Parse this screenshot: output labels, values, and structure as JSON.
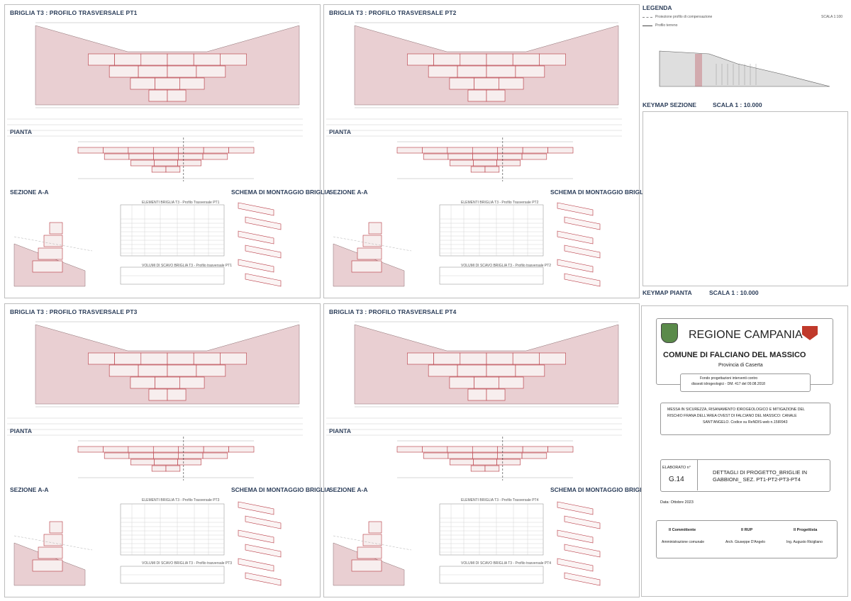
{
  "panels": [
    {
      "id": "pt1",
      "title": "BRIGLIA T3 : PROFILO TRASVERSALE PT1",
      "pianta": "PIANTA",
      "sezione": "SEZIONE A-A",
      "schema": "SCHEMA DI MONTAGGIO BRIGLIA",
      "table_title": "ELEMENTI BRIGLIA T3 - Profilo Trasversale PT1",
      "volume_title": "VOLUMI DI SCAVO BRIGLIA T3 - Profilo trasversale PT1"
    },
    {
      "id": "pt2",
      "title": "BRIGLIA T3 : PROFILO TRASVERSALE PT2",
      "pianta": "PIANTA",
      "sezione": "SEZIONE A-A",
      "schema": "SCHEMA DI MONTAGGIO BRIGLIA",
      "table_title": "ELEMENTI BRIGLIA T3 - Profilo Trasversale PT2",
      "volume_title": "VOLUMI DI SCAVO BRIGLIA T3 - Profilo trasversale PT2"
    },
    {
      "id": "pt3",
      "title": "BRIGLIA T3 : PROFILO TRASVERSALE PT3",
      "pianta": "PIANTA",
      "sezione": "SEZIONE A-A",
      "schema": "SCHEMA DI MONTAGGIO BRIGLIA",
      "table_title": "ELEMENTI BRIGLIA T3 - Profilo Trasversale PT3",
      "volume_title": "VOLUMI DI SCAVO BRIGLIA T3 - Profilo trasversale PT3"
    },
    {
      "id": "pt4",
      "title": "BRIGLIA T3 : PROFILO TRASVERSALE PT4",
      "pianta": "PIANTA",
      "sezione": "SEZIONE A-A",
      "schema": "SCHEMA DI MONTAGGIO BRIGLIA",
      "table_title": "ELEMENTI BRIGLIA T3 - Profilo Trasversale PT4",
      "volume_title": "VOLUMI DI SCAVO BRIGLIA T3 - Profilo trasversale PT4"
    }
  ],
  "legend": {
    "title": "LEGENDA",
    "item1": "Proiezione profilo di compensazione",
    "item2": "Profilo terreno",
    "scale": "SCALA 1:100"
  },
  "keymap_sezione": {
    "title": "KEYMAP SEZIONE",
    "scale": "SCALA 1 : 10.000"
  },
  "keymap_pianta": {
    "title": "KEYMAP PIANTA",
    "scale": "SCALA 1 : 10.000"
  },
  "cartiglio": {
    "region": "REGIONE CAMPANIA",
    "comune": "COMUNE DI FALCIANO DEL MASSICO",
    "provincia": "Provincia di Caserta",
    "fondo_line1": "Fondo progettazioni interventi contro",
    "fondo_line2": "dissesti idrogeologici - DM. 417 del 09.08.2018",
    "intervento_line1": "MESSA IN SICUREZZA, RISANAMENTO IDROGEOLOGICO E MITIGAZIONE DEL",
    "intervento_line2": "RISCHIO FRANA DELL'AREA OVEST DI FALCIANO DEL MASSICO: CANALE",
    "intervento_line3": "SANT'ANGELO. Codice su ReNDIS-web n.15IR943",
    "elaborato_label": "ELABORATO n°",
    "elaborato_code": "G.14",
    "elaborato_title_line1": "DETTAGLI DI PROGETTO_BRIGLIE IN",
    "elaborato_title_line2": "GABBIONI_ SEZ. PT1-PT2-PT3-PT4",
    "data": "Data: Ottobre 2023",
    "committente_label": "Il Committente",
    "committente": "Amministrazione comunale",
    "rup_label": "Il RUP",
    "rup": "Arch. Giuseppe D'Angelo",
    "progettista_label": "Il Progettista",
    "progettista": "Ing. Augusto Ricigliano"
  },
  "colors": {
    "fill": "#e9cfd2",
    "stroke": "#b5323d",
    "title": "#2c3e5a"
  }
}
